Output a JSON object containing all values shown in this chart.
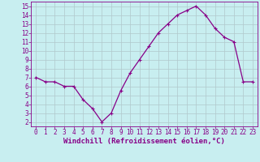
{
  "x": [
    0,
    1,
    2,
    3,
    4,
    5,
    6,
    7,
    8,
    9,
    10,
    11,
    12,
    13,
    14,
    15,
    16,
    17,
    18,
    19,
    20,
    21,
    22,
    23
  ],
  "y": [
    7.0,
    6.5,
    6.5,
    6.0,
    6.0,
    4.5,
    3.5,
    2.0,
    3.0,
    5.5,
    7.5,
    9.0,
    10.5,
    12.0,
    13.0,
    14.0,
    14.5,
    15.0,
    14.0,
    12.5,
    11.5,
    11.0,
    6.5,
    6.5
  ],
  "line_color": "#880088",
  "marker": "+",
  "marker_size": 3,
  "marker_lw": 0.8,
  "bg_color": "#c8eef0",
  "grid_color": "#b0c8cc",
  "xlabel": "Windchill (Refroidissement éolien,°C)",
  "xlabel_color": "#880088",
  "tick_color": "#880088",
  "ylim": [
    1.5,
    15.5
  ],
  "xlim": [
    -0.5,
    23.5
  ],
  "yticks": [
    2,
    3,
    4,
    5,
    6,
    7,
    8,
    9,
    10,
    11,
    12,
    13,
    14,
    15
  ],
  "xticks": [
    0,
    1,
    2,
    3,
    4,
    5,
    6,
    7,
    8,
    9,
    10,
    11,
    12,
    13,
    14,
    15,
    16,
    17,
    18,
    19,
    20,
    21,
    22,
    23
  ],
  "tick_fontsize": 5.5,
  "xlabel_fontsize": 6.5,
  "linewidth": 0.9
}
